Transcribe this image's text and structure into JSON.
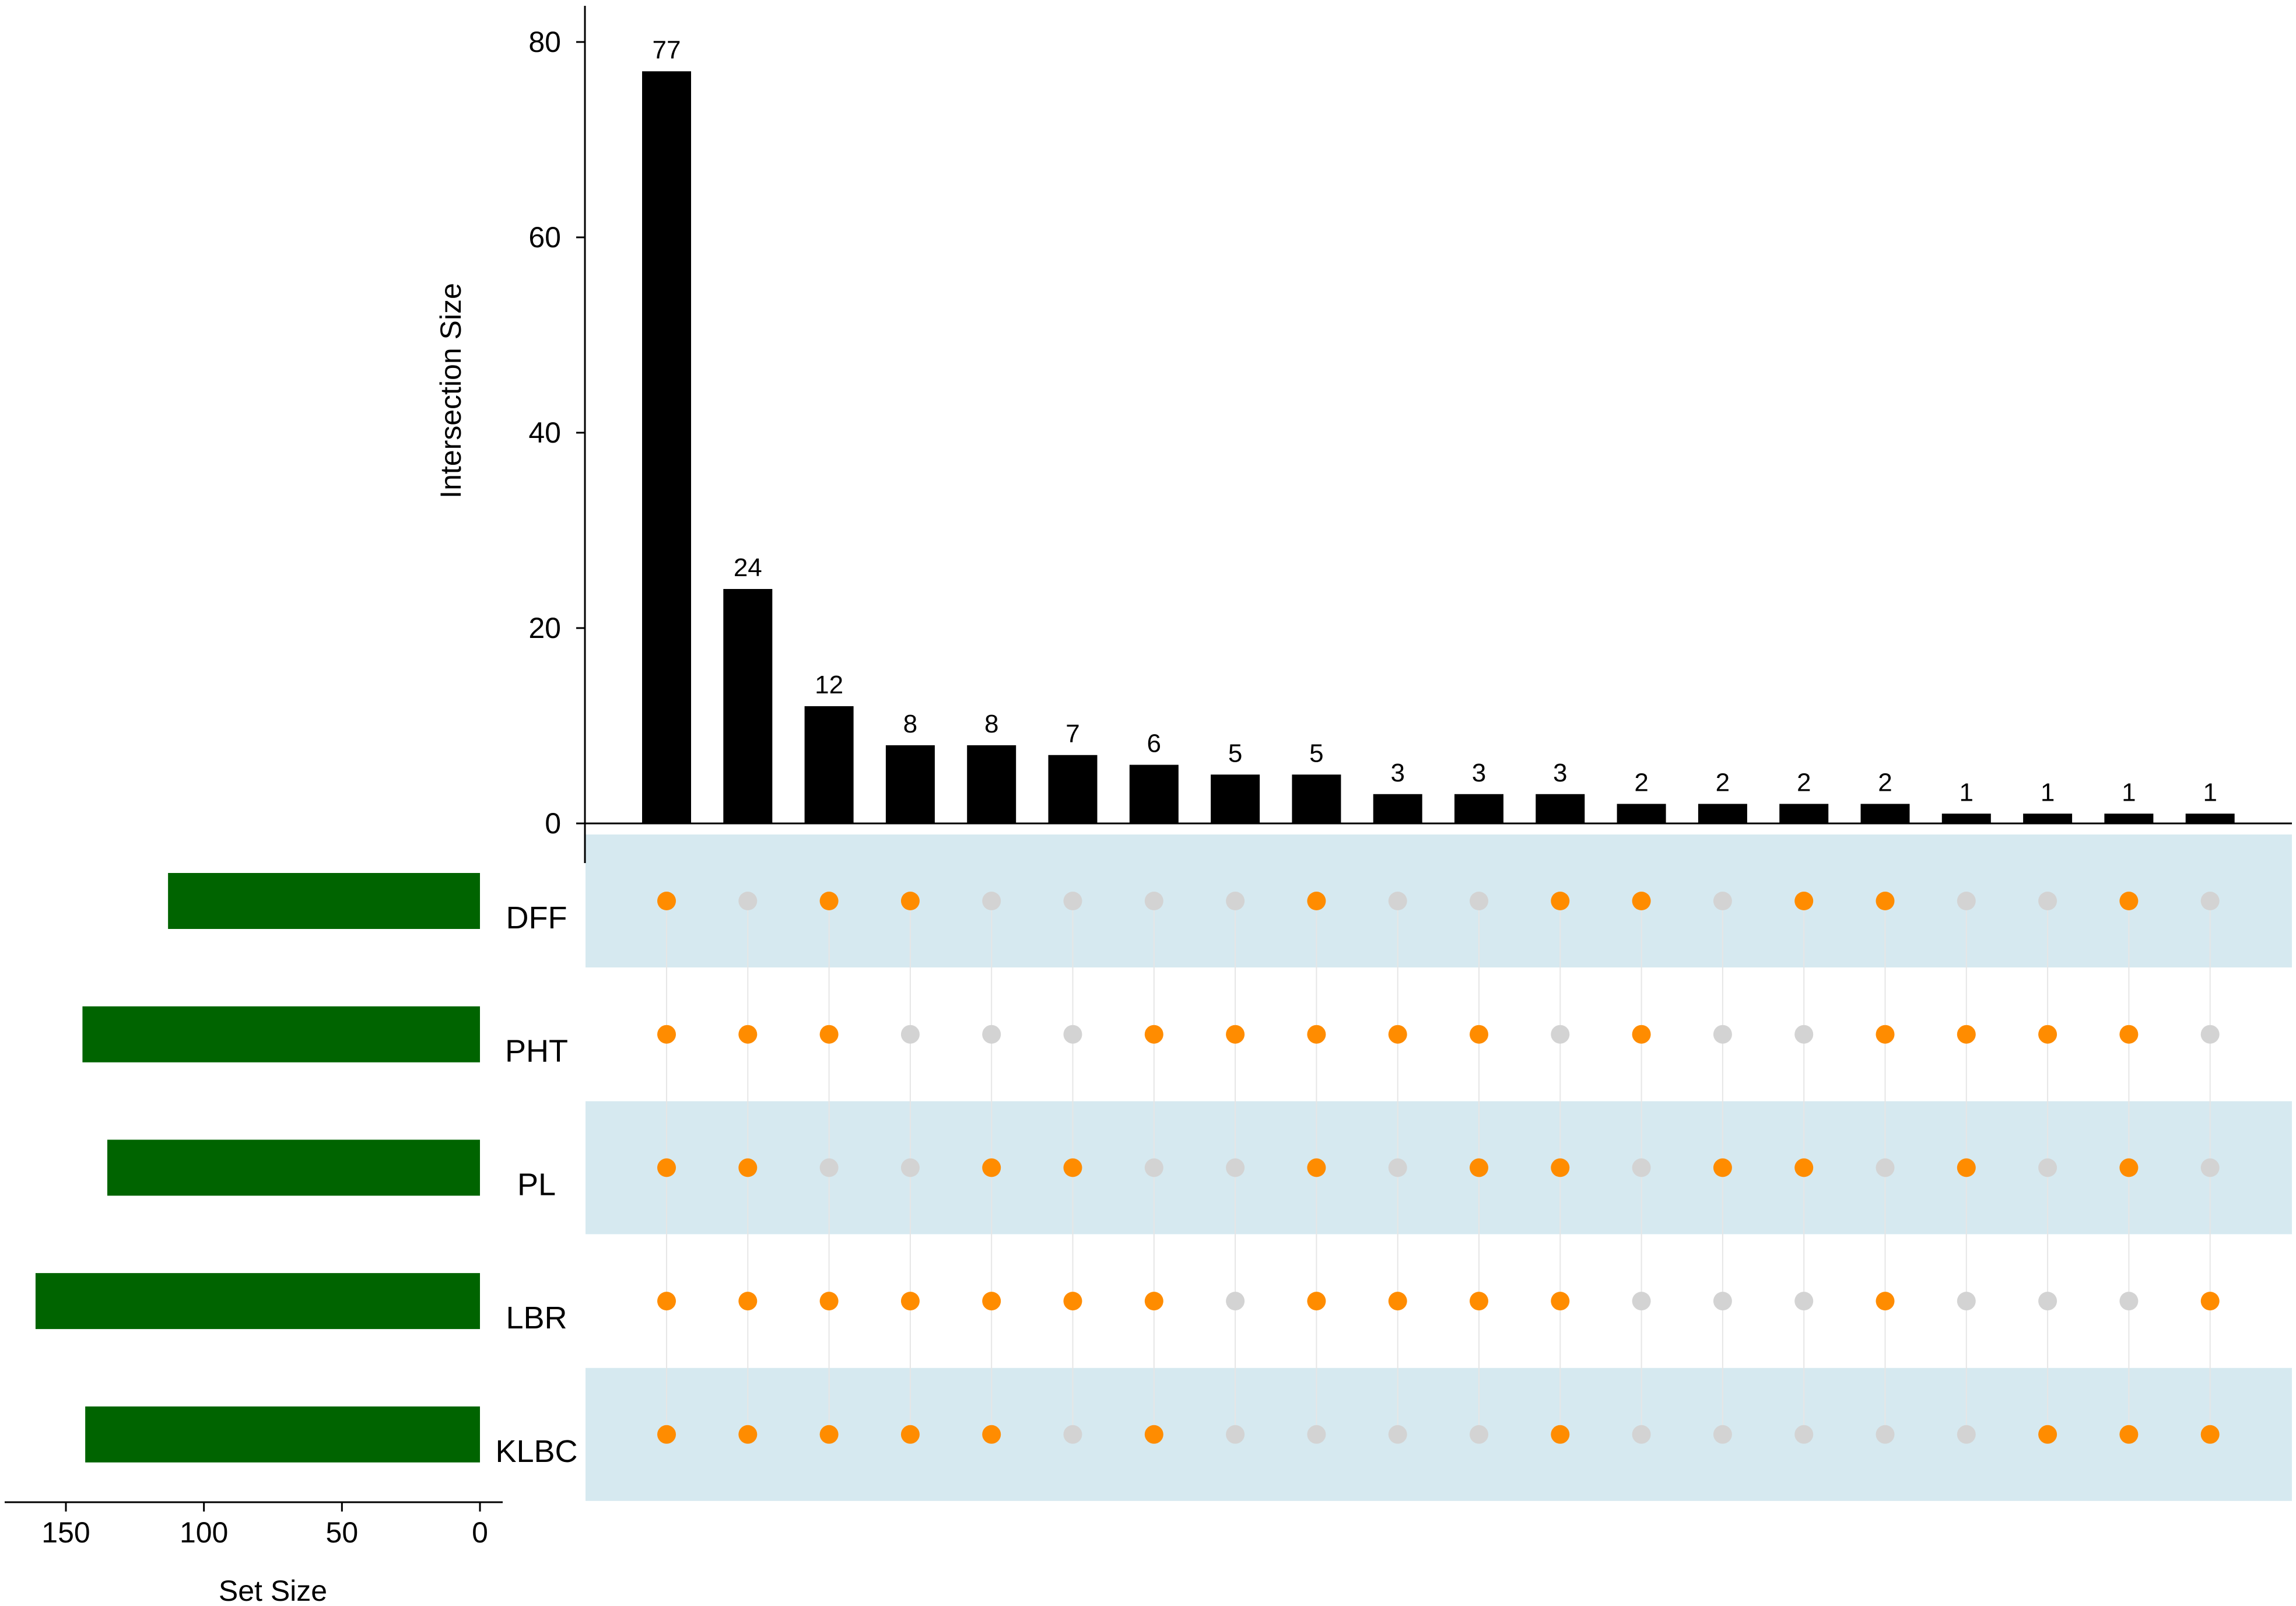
{
  "chart_data": {
    "type": "upset",
    "intersection_axis": {
      "label": "Intersection Size",
      "ylim": [
        0,
        80
      ],
      "ticks": [
        0,
        20,
        40,
        60,
        80
      ]
    },
    "set_size_axis": {
      "label": "Set Size",
      "xlim": [
        165,
        0
      ],
      "ticks": [
        150,
        100,
        50,
        0
      ]
    },
    "sets": [
      {
        "name": "DFF",
        "size": 113
      },
      {
        "name": "PHT",
        "size": 144
      },
      {
        "name": "PL",
        "size": 135
      },
      {
        "name": "LBR",
        "size": 161
      },
      {
        "name": "KLBC",
        "size": 143
      }
    ],
    "intersections": [
      {
        "size": 77,
        "members": [
          "DFF",
          "PHT",
          "PL",
          "LBR",
          "KLBC"
        ]
      },
      {
        "size": 24,
        "members": [
          "PHT",
          "PL",
          "LBR",
          "KLBC"
        ]
      },
      {
        "size": 12,
        "members": [
          "DFF",
          "PHT",
          "LBR",
          "KLBC"
        ]
      },
      {
        "size": 8,
        "members": [
          "DFF",
          "LBR",
          "KLBC"
        ]
      },
      {
        "size": 8,
        "members": [
          "PL",
          "LBR",
          "KLBC"
        ]
      },
      {
        "size": 7,
        "members": [
          "PL",
          "LBR"
        ]
      },
      {
        "size": 6,
        "members": [
          "PHT",
          "LBR",
          "KLBC"
        ]
      },
      {
        "size": 5,
        "members": [
          "PHT"
        ]
      },
      {
        "size": 5,
        "members": [
          "DFF",
          "PHT",
          "PL",
          "LBR"
        ]
      },
      {
        "size": 3,
        "members": [
          "PHT",
          "LBR"
        ]
      },
      {
        "size": 3,
        "members": [
          "PHT",
          "PL",
          "LBR"
        ]
      },
      {
        "size": 3,
        "members": [
          "DFF",
          "PL",
          "LBR",
          "KLBC"
        ]
      },
      {
        "size": 2,
        "members": [
          "DFF",
          "PHT"
        ]
      },
      {
        "size": 2,
        "members": [
          "PL"
        ]
      },
      {
        "size": 2,
        "members": [
          "DFF",
          "PL"
        ]
      },
      {
        "size": 2,
        "members": [
          "DFF",
          "PHT",
          "LBR"
        ]
      },
      {
        "size": 1,
        "members": [
          "PHT",
          "PL"
        ]
      },
      {
        "size": 1,
        "members": [
          "PHT",
          "KLBC"
        ]
      },
      {
        "size": 1,
        "members": [
          "DFF",
          "PHT",
          "PL",
          "KLBC"
        ]
      },
      {
        "size": 1,
        "members": [
          "LBR",
          "KLBC"
        ]
      }
    ],
    "colors": {
      "intersection_bars": "#000000",
      "set_bars": "#006400",
      "dot_active": "#ff8c00",
      "dot_inactive": "#d3d3d3",
      "row_stripe": "#d6e9f0"
    }
  }
}
